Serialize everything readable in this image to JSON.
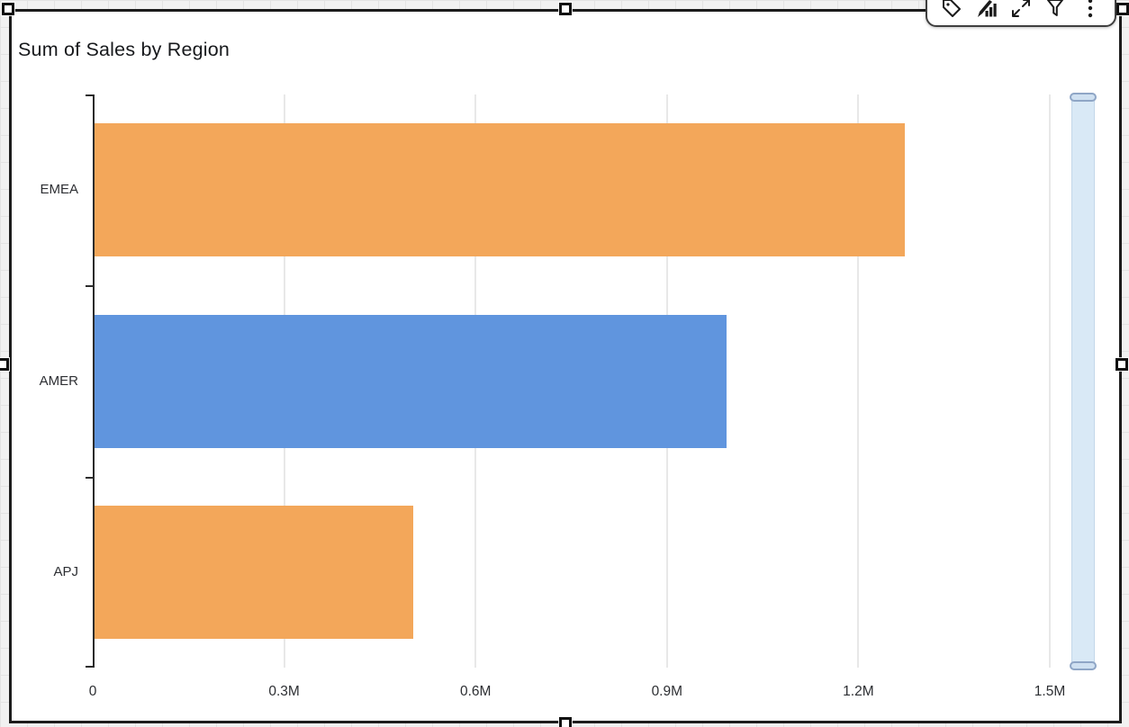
{
  "page": {
    "background": "#f1f1f1",
    "grid_line_color": "#e3e3e3"
  },
  "visual": {
    "title": "Sum of Sales by Region",
    "background": "#ffffff",
    "selection_border_color": "#1c1c1c",
    "selected": true
  },
  "toolbar": {
    "background": "#ffffff",
    "icon_color": "#1b1b1b",
    "icons": [
      {
        "name": "tag-icon"
      },
      {
        "name": "edit-visual-icon"
      },
      {
        "name": "resize-icon"
      },
      {
        "name": "filter-icon"
      },
      {
        "name": "menu-icon"
      }
    ]
  },
  "scrollbar": {
    "track_color": "#d9e9f6",
    "handle_fill": "#cfe0f1",
    "handle_border_color": "#8fa6c6"
  },
  "chart_data": {
    "type": "bar",
    "orientation": "horizontal",
    "title": "Sum of Sales by Region",
    "categories": [
      "EMEA",
      "AMER",
      "APJ"
    ],
    "values": [
      1270000,
      990000,
      500000
    ],
    "bar_colors": [
      "#f3a75a",
      "#6095de",
      "#f3a75a"
    ],
    "x_ticks": [
      {
        "label": "0",
        "value": 0
      },
      {
        "label": "0.3M",
        "value": 300000
      },
      {
        "label": "0.6M",
        "value": 600000
      },
      {
        "label": "0.9M",
        "value": 900000
      },
      {
        "label": "1.2M",
        "value": 1200000
      },
      {
        "label": "1.5M",
        "value": 1500000
      }
    ],
    "xlim": [
      0,
      1500000
    ],
    "grid": true,
    "legend": "none",
    "axis_color": "#2b2b2b",
    "gridline_color": "#e8e8e8",
    "label_color": "#2d2f33"
  }
}
